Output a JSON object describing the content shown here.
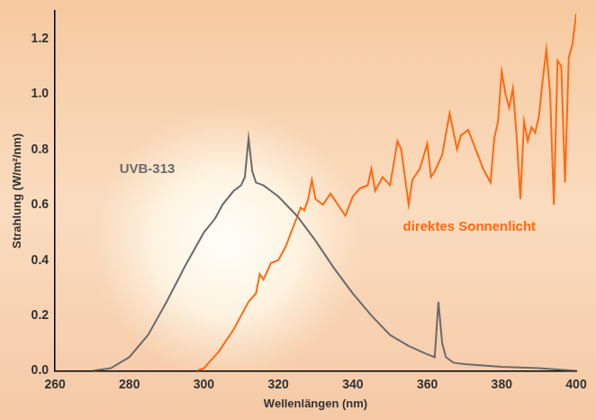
{
  "chart_data": {
    "type": "line",
    "x_label": "Wellenlängen (nm)",
    "y_label": "Strahlung (W/m²/nm)",
    "xlim": [
      260,
      400
    ],
    "xticks": [
      260,
      280,
      300,
      320,
      340,
      360,
      380,
      400
    ],
    "ylim": [
      0,
      1.3
    ],
    "yticks": [
      {
        "value": 0,
        "label": "0.0"
      },
      0.2,
      0.4,
      0.6,
      0.8,
      {
        "value": 1,
        "label": "1.0"
      },
      1.2
    ],
    "grid": false,
    "series": [
      {
        "name": "UVB-313",
        "color": "#6b6b6b",
        "x": [
          270,
          275,
          280,
          285,
          290,
          295,
          300,
          303,
          305,
          308,
          310,
          311,
          312,
          313,
          314,
          316,
          320,
          325,
          330,
          335,
          340,
          345,
          350,
          355,
          360,
          362,
          363,
          364,
          365,
          367,
          370,
          380,
          390,
          400
        ],
        "values": [
          0,
          0.01,
          0.05,
          0.13,
          0.25,
          0.38,
          0.5,
          0.55,
          0.6,
          0.65,
          0.67,
          0.7,
          0.84,
          0.72,
          0.68,
          0.67,
          0.63,
          0.56,
          0.47,
          0.37,
          0.28,
          0.2,
          0.13,
          0.09,
          0.06,
          0.05,
          0.25,
          0.1,
          0.05,
          0.03,
          0.025,
          0.015,
          0.01,
          0
        ]
      },
      {
        "name": "direktes Sonnenlicht",
        "color": "#ff6a13",
        "x": [
          298,
          300,
          302,
          304,
          306,
          308,
          310,
          312,
          314,
          315,
          316,
          318,
          320,
          322,
          324,
          326,
          327,
          328,
          329,
          330,
          332,
          334,
          336,
          338,
          340,
          342,
          344,
          345,
          346,
          348,
          350,
          351,
          352,
          353,
          354,
          355,
          356,
          358,
          360,
          361,
          362,
          364,
          366,
          368,
          369,
          371,
          373,
          375,
          377,
          378,
          379,
          380,
          381,
          382,
          383,
          384,
          385,
          386,
          387,
          388,
          389,
          390,
          391,
          392,
          393,
          394,
          395,
          396,
          397,
          398,
          399,
          400
        ],
        "values": [
          0,
          0.01,
          0.04,
          0.07,
          0.11,
          0.15,
          0.2,
          0.25,
          0.28,
          0.35,
          0.33,
          0.39,
          0.4,
          0.45,
          0.52,
          0.59,
          0.58,
          0.62,
          0.69,
          0.62,
          0.6,
          0.64,
          0.6,
          0.56,
          0.63,
          0.66,
          0.67,
          0.73,
          0.65,
          0.7,
          0.67,
          0.75,
          0.83,
          0.8,
          0.7,
          0.6,
          0.69,
          0.73,
          0.82,
          0.7,
          0.72,
          0.78,
          0.93,
          0.8,
          0.85,
          0.87,
          0.8,
          0.73,
          0.68,
          0.84,
          0.9,
          1.08,
          1.0,
          0.95,
          1.02,
          0.85,
          0.62,
          0.9,
          0.83,
          0.88,
          0.86,
          0.92,
          1.05,
          1.16,
          1.0,
          0.6,
          1.12,
          1.1,
          0.68,
          1.13,
          1.18,
          1.29
        ]
      }
    ]
  }
}
